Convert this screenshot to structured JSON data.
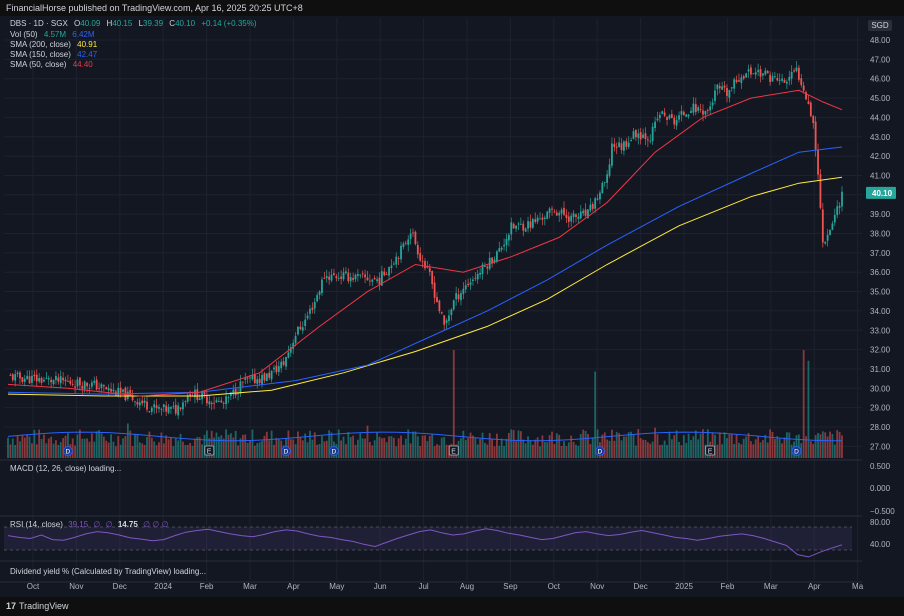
{
  "header": {
    "published": "FinancialHorse published on TradingView.com, Apr 16, 2025 20:25 UTC+8",
    "currency": "SGD"
  },
  "legend": {
    "symbol": "DBS · 1D · SGX",
    "o_label": "O",
    "o": "40.09",
    "h_label": "H",
    "h": "40.15",
    "l_label": "L",
    "l": "39.39",
    "c_label": "C",
    "c": "40.10",
    "change": "+0.14 (+0.35%)",
    "vol_label": "Vol (50)",
    "vol_a": "4.57M",
    "vol_b": "6.42M",
    "sma200_label": "SMA (200, close)",
    "sma200": "40.91",
    "sma150_label": "SMA (150, close)",
    "sma150": "42.47",
    "sma50_label": "SMA (50, close)",
    "sma50": "44.40"
  },
  "panes": {
    "macd_label": "MACD (12, 26, close) loading...",
    "rsi_label": "RSI (14, close)",
    "rsi_v1": "39.15",
    "rsi_v2": "∅",
    "rsi_v3": "∅",
    "rsi_v4": "14.75",
    "rsi_v5": "∅ ∅ ∅",
    "dividend_label": "Dividend yield % (Calculated by TradingView) loading..."
  },
  "footer": {
    "logo": "17",
    "brand": "TradingView"
  },
  "colors": {
    "up": "#26a69a",
    "down": "#ef5350",
    "sma50": "#f23645",
    "sma150": "#2962ff",
    "sma200": "#ffeb3b",
    "rsi": "#7e57c2",
    "background": "#131722"
  },
  "chart_data": [
    {
      "type": "candlestick",
      "title": "DBS · 1D · SGX",
      "x_ticks": [
        "Oct",
        "Nov",
        "Dec",
        "2024",
        "Feb",
        "Mar",
        "Apr",
        "May",
        "Jun",
        "Jul",
        "Aug",
        "Sep",
        "Oct",
        "Nov",
        "Dec",
        "2025",
        "Feb",
        "Mar",
        "Apr",
        "Ma"
      ],
      "y_ticks": [
        "48.00",
        "47.00",
        "46.00",
        "45.00",
        "44.00",
        "43.00",
        "42.00",
        "41.00",
        "40.00",
        "39.00",
        "38.00",
        "37.00",
        "36.00",
        "35.00",
        "34.00",
        "33.00",
        "32.00",
        "31.00",
        "30.00",
        "29.00",
        "28.00",
        "27.00"
      ],
      "ylim": [
        26.4,
        48.4
      ],
      "last_price": "40.10",
      "close_path": [
        [
          0,
          30.6
        ],
        [
          18,
          30.4
        ],
        [
          35,
          30.2
        ],
        [
          50,
          29.6
        ],
        [
          62,
          28.9
        ],
        [
          70,
          28.9
        ],
        [
          76,
          29.8
        ],
        [
          82,
          29.5
        ],
        [
          90,
          29.2
        ],
        [
          98,
          30.3
        ],
        [
          108,
          30.6
        ],
        [
          115,
          31.3
        ],
        [
          120,
          32.8
        ],
        [
          124,
          33.5
        ],
        [
          128,
          34.5
        ],
        [
          132,
          35.8
        ],
        [
          140,
          35.8
        ],
        [
          155,
          35.6
        ],
        [
          160,
          36.5
        ],
        [
          165,
          37.3
        ],
        [
          168,
          38.2
        ],
        [
          172,
          36.8
        ],
        [
          176,
          35.8
        ],
        [
          182,
          33.2
        ],
        [
          186,
          34.5
        ],
        [
          190,
          35.2
        ],
        [
          196,
          35.9
        ],
        [
          205,
          37.1
        ],
        [
          210,
          38.3
        ],
        [
          218,
          38.5
        ],
        [
          228,
          39.2
        ],
        [
          235,
          38.8
        ],
        [
          242,
          39.0
        ],
        [
          250,
          40.8
        ],
        [
          252,
          42.6
        ],
        [
          256,
          42.5
        ],
        [
          262,
          43.2
        ],
        [
          268,
          43.0
        ],
        [
          272,
          44.2
        ],
        [
          278,
          43.8
        ],
        [
          285,
          44.5
        ],
        [
          292,
          44.3
        ],
        [
          296,
          45.5
        ],
        [
          300,
          45.2
        ],
        [
          306,
          46.2
        ],
        [
          312,
          46.4
        ],
        [
          318,
          46.1
        ],
        [
          324,
          45.8
        ],
        [
          329,
          46.4
        ],
        [
          332,
          45.6
        ],
        [
          336,
          43.8
        ],
        [
          338,
          41.0
        ],
        [
          340,
          37.6
        ],
        [
          342,
          38.0
        ],
        [
          344,
          38.6
        ],
        [
          346,
          39.3
        ],
        [
          348,
          40.1
        ]
      ],
      "sma50_path": [
        [
          0,
          30.2
        ],
        [
          25,
          30.0
        ],
        [
          55,
          29.6
        ],
        [
          80,
          29.8
        ],
        [
          105,
          30.8
        ],
        [
          130,
          33.2
        ],
        [
          150,
          35.0
        ],
        [
          170,
          36.4
        ],
        [
          190,
          36.0
        ],
        [
          210,
          36.8
        ],
        [
          230,
          37.8
        ],
        [
          250,
          39.6
        ],
        [
          270,
          42.2
        ],
        [
          290,
          44.0
        ],
        [
          310,
          45.0
        ],
        [
          330,
          45.4
        ],
        [
          340,
          44.8
        ],
        [
          348,
          44.4
        ]
      ],
      "sma150_path": [
        [
          0,
          29.8
        ],
        [
          40,
          29.7
        ],
        [
          80,
          29.8
        ],
        [
          120,
          30.4
        ],
        [
          150,
          31.2
        ],
        [
          175,
          32.6
        ],
        [
          200,
          34.0
        ],
        [
          225,
          35.6
        ],
        [
          250,
          37.4
        ],
        [
          280,
          39.4
        ],
        [
          310,
          41.1
        ],
        [
          330,
          42.2
        ],
        [
          348,
          42.47
        ]
      ],
      "sma200_path": [
        [
          0,
          29.7
        ],
        [
          40,
          29.6
        ],
        [
          80,
          29.6
        ],
        [
          110,
          29.9
        ],
        [
          140,
          30.8
        ],
        [
          170,
          31.9
        ],
        [
          200,
          33.2
        ],
        [
          225,
          34.6
        ],
        [
          250,
          36.4
        ],
        [
          280,
          38.4
        ],
        [
          310,
          39.9
        ],
        [
          330,
          40.6
        ],
        [
          348,
          40.91
        ]
      ],
      "earnings_markers": [
        {
          "label": "E",
          "at": 84
        },
        {
          "label": "E",
          "at": 186
        },
        {
          "label": "E",
          "at": 293
        }
      ],
      "dividend_markers": [
        {
          "label": "D",
          "at": 25
        },
        {
          "label": "D",
          "at": 116
        },
        {
          "label": "D",
          "at": 136
        },
        {
          "label": "D",
          "at": 247
        },
        {
          "label": "D",
          "at": 329
        }
      ],
      "volume": {
        "baseline_level": 0.18,
        "spikes": [
          [
            186,
            1.0
          ],
          [
            245,
            0.8
          ],
          [
            332,
            1.0
          ],
          [
            334,
            0.9
          ],
          [
            50,
            0.32
          ],
          [
            150,
            0.3
          ],
          [
            270,
            0.28
          ]
        ]
      }
    },
    {
      "type": "line",
      "title": "MACD (12, 26, close) loading...",
      "y_ticks": [
        "0.500",
        "0.000",
        "−0.500"
      ]
    },
    {
      "type": "line",
      "title": "RSI (14, close)",
      "y_ticks": [
        "80.00",
        "40.00"
      ],
      "band": [
        30,
        70
      ],
      "series": [
        {
          "values": [
            55,
            52,
            50,
            56,
            48,
            47,
            52,
            58,
            62,
            60,
            56,
            51,
            49,
            46,
            48,
            55,
            61,
            64,
            66,
            62,
            58,
            55,
            53,
            57,
            62,
            65,
            63,
            58,
            54,
            52,
            48,
            45,
            40,
            36,
            43,
            50,
            56,
            62,
            65,
            60,
            56,
            58,
            63,
            67,
            64,
            59,
            56,
            52,
            48,
            50,
            55,
            60,
            62,
            58,
            55,
            57,
            61,
            64,
            60,
            56,
            52,
            50,
            47,
            50,
            54,
            56,
            58,
            55,
            50,
            44,
            38,
            22,
            18,
            26,
            33,
            39
          ]
        }
      ]
    }
  ]
}
